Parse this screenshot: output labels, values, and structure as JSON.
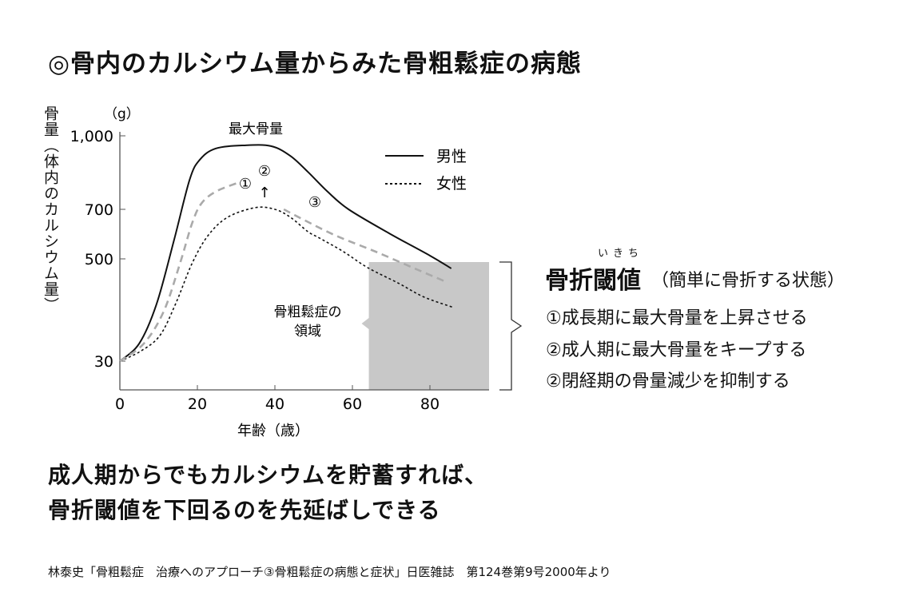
{
  "title": "◎骨内のカルシウム量からみた骨粗鬆症の病態",
  "chart_data": {
    "type": "line",
    "ylabel": "骨量（体内のカルシウム量）",
    "yunit": "（g）",
    "xlabel": "年齢（歳）",
    "xlim": [
      0,
      95
    ],
    "xticks": [
      0,
      20,
      40,
      60,
      80
    ],
    "yticks": [
      30,
      500,
      700,
      1000
    ],
    "ytick_labels": [
      "30",
      "500",
      "700",
      "1,000"
    ],
    "y_scale": "non-uniform",
    "grid": false,
    "legend": {
      "placement": "top-right",
      "entries": [
        {
          "label": "男性",
          "style": "solid"
        },
        {
          "label": "女性",
          "style": "dotted"
        }
      ]
    },
    "series": [
      {
        "name": "男性",
        "style": "solid",
        "color": "#111111",
        "x": [
          0,
          5,
          9.5,
          14,
          18,
          20.6,
          24.7,
          32,
          39,
          44,
          48.5,
          53.6,
          59,
          69.5,
          80,
          85.5
        ],
        "y": [
          30,
          111,
          294,
          577,
          821,
          902,
          948,
          961,
          958,
          918,
          853,
          772,
          700,
          603,
          513,
          456
        ]
      },
      {
        "name": "女性",
        "style": "dotted",
        "color": "#111111",
        "x": [
          0,
          5.2,
          10.3,
          14.4,
          18.6,
          22.7,
          27.8,
          35,
          40,
          44,
          48.5,
          51.5,
          57.7,
          63.9,
          72,
          78.4,
          86
        ],
        "y": [
          30,
          74,
          147,
          294,
          478,
          593,
          668,
          707,
          700,
          668,
          610,
          584,
          529,
          460,
          387,
          325,
          277
        ]
      },
      {
        "style": "dashed",
        "color": "#aaaaaa",
        "x": [
          0,
          6.2,
          11.3,
          15.5,
          18.6,
          21,
          24.7,
          30.9
        ],
        "y": [
          30,
          111,
          258,
          478,
          642,
          723,
          772,
          811
        ]
      },
      {
        "style": "dashed",
        "color": "#aaaaaa",
        "x": [
          42.3,
          47.4,
          55.7,
          66,
          76.3,
          84.5
        ],
        "y": [
          700,
          658,
          594,
          529,
          454,
          392
        ]
      }
    ],
    "annotations": {
      "peak": "最大骨量",
      "mark1": "①",
      "mark2": "②",
      "arrow": "↑",
      "mark3": "③",
      "region": [
        "骨粗鬆症の",
        "領域"
      ]
    },
    "region": {
      "x_from": 63,
      "x_to": 95,
      "y_below": 490,
      "color": "#c8c8c8"
    }
  },
  "threshold": {
    "ruby": "いきち",
    "title": "骨折閾値",
    "subtitle": "（簡単に骨折する状態）",
    "items": [
      "①成長期に最大骨量を上昇させる",
      "②成人期に最大骨量をキープする",
      "②閉経期の骨量減少を抑制する"
    ]
  },
  "conclusion": [
    "成人期からでもカルシウムを貯蓄すれば、",
    "骨折閾値を下回るのを先延ばしできる"
  ],
  "source": "林泰史「骨粗鬆症　治療へのアプローチ③骨粗鬆症の病態と症状」日医雑誌　第124巻第9号2000年より"
}
